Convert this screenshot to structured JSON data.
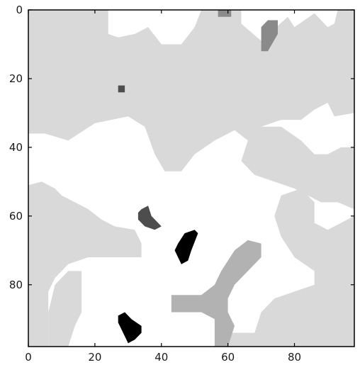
{
  "chart_data": {
    "type": "heatmap",
    "title": "",
    "xlabel": "",
    "ylabel": "",
    "xlim": [
      0,
      98
    ],
    "ylim": [
      98,
      0
    ],
    "x_ticks": [
      "0",
      "20",
      "40",
      "60",
      "80"
    ],
    "y_ticks": [
      "0",
      "20",
      "40",
      "60",
      "80"
    ],
    "grid": false,
    "colormap": "gray_r",
    "levels": {
      "background": "#ffffff",
      "light": "#d9d9d9",
      "medium": "#b2b2b2",
      "dark": "#8a8a8a",
      "darker": "#4d4d4d",
      "black": "#000000"
    },
    "regions": [
      {
        "level": "light",
        "polygon": [
          [
            0,
            0
          ],
          [
            24,
            0
          ],
          [
            24,
            7
          ],
          [
            27,
            8
          ],
          [
            32,
            7
          ],
          [
            36,
            5
          ],
          [
            40,
            10
          ],
          [
            46,
            10
          ],
          [
            50,
            5
          ],
          [
            52,
            0
          ],
          [
            64,
            0
          ],
          [
            64,
            4
          ],
          [
            70,
            9
          ],
          [
            78,
            2
          ],
          [
            80,
            5
          ],
          [
            86,
            1
          ],
          [
            90,
            5
          ],
          [
            92,
            4
          ],
          [
            93,
            0
          ],
          [
            98,
            0
          ],
          [
            98,
            30
          ],
          [
            92,
            31
          ],
          [
            90,
            27
          ],
          [
            86,
            29
          ],
          [
            82,
            32
          ],
          [
            76,
            32
          ],
          [
            70,
            34
          ],
          [
            66,
            38
          ],
          [
            62,
            35
          ],
          [
            56,
            38
          ],
          [
            50,
            42
          ],
          [
            46,
            47
          ],
          [
            41,
            47
          ],
          [
            38,
            42
          ],
          [
            35,
            34
          ],
          [
            30,
            31
          ],
          [
            20,
            33
          ],
          [
            12,
            38
          ],
          [
            5,
            36
          ],
          [
            0,
            36
          ]
        ]
      },
      {
        "level": "light",
        "polygon": [
          [
            0,
            0
          ],
          [
            3,
            0
          ],
          [
            3,
            6
          ],
          [
            0,
            6
          ]
        ]
      },
      {
        "level": "light",
        "polygon": [
          [
            44,
            35
          ],
          [
            52,
            34
          ],
          [
            54,
            36
          ],
          [
            50,
            40
          ],
          [
            45,
            40
          ]
        ]
      },
      {
        "level": "light",
        "polygon": [
          [
            70,
            34
          ],
          [
            76,
            34
          ],
          [
            82,
            38
          ],
          [
            86,
            42
          ],
          [
            90,
            42
          ],
          [
            94,
            40
          ],
          [
            98,
            40
          ],
          [
            98,
            58
          ],
          [
            93,
            56
          ],
          [
            88,
            56
          ],
          [
            80,
            52
          ],
          [
            74,
            50
          ],
          [
            68,
            48
          ],
          [
            64,
            44
          ],
          [
            66,
            38
          ]
        ]
      },
      {
        "level": "light",
        "polygon": [
          [
            0,
            51
          ],
          [
            4,
            50
          ],
          [
            8,
            52
          ],
          [
            10,
            54
          ],
          [
            14,
            56
          ],
          [
            18,
            58
          ],
          [
            22,
            61
          ],
          [
            26,
            63
          ],
          [
            32,
            64
          ],
          [
            34,
            68
          ],
          [
            34,
            72
          ],
          [
            30,
            72
          ],
          [
            24,
            72
          ],
          [
            18,
            72
          ],
          [
            12,
            74
          ],
          [
            8,
            78
          ],
          [
            6,
            82
          ],
          [
            6,
            98
          ],
          [
            0,
            98
          ]
        ]
      },
      {
        "level": "light",
        "polygon": [
          [
            8,
            80
          ],
          [
            12,
            76
          ],
          [
            16,
            76
          ],
          [
            16,
            88
          ],
          [
            14,
            92
          ],
          [
            12,
            98
          ],
          [
            6,
            98
          ],
          [
            6,
            88
          ]
        ]
      },
      {
        "level": "light",
        "polygon": [
          [
            76,
            54
          ],
          [
            82,
            52
          ],
          [
            86,
            56
          ],
          [
            86,
            62
          ],
          [
            90,
            64
          ],
          [
            94,
            62
          ],
          [
            98,
            60
          ],
          [
            98,
            98
          ],
          [
            60,
            98
          ],
          [
            60,
            94
          ],
          [
            68,
            94
          ],
          [
            70,
            88
          ],
          [
            74,
            84
          ],
          [
            80,
            82
          ],
          [
            86,
            80
          ],
          [
            86,
            76
          ],
          [
            80,
            72
          ],
          [
            76,
            66
          ],
          [
            74,
            60
          ]
        ]
      },
      {
        "level": "medium",
        "polygon": [
          [
            43,
            83
          ],
          [
            52,
            83
          ],
          [
            56,
            80
          ],
          [
            58,
            76
          ],
          [
            62,
            70
          ],
          [
            66,
            67
          ],
          [
            70,
            68
          ],
          [
            70,
            72
          ],
          [
            66,
            76
          ],
          [
            62,
            80
          ],
          [
            60,
            84
          ],
          [
            60,
            88
          ],
          [
            62,
            92
          ],
          [
            60,
            98
          ],
          [
            56,
            98
          ],
          [
            56,
            90
          ],
          [
            52,
            88
          ],
          [
            46,
            88
          ],
          [
            43,
            88
          ]
        ]
      },
      {
        "level": "dark",
        "polygon": [
          [
            70,
            5
          ],
          [
            72,
            3
          ],
          [
            75,
            3
          ],
          [
            75,
            7
          ],
          [
            72,
            12
          ],
          [
            70,
            12
          ]
        ]
      },
      {
        "level": "dark",
        "polygon": [
          [
            57,
            0
          ],
          [
            61,
            0
          ],
          [
            61,
            2
          ],
          [
            57,
            2
          ]
        ]
      },
      {
        "level": "darker",
        "polygon": [
          [
            27,
            22
          ],
          [
            29,
            22
          ],
          [
            29,
            24
          ],
          [
            27,
            24
          ]
        ]
      },
      {
        "level": "darker",
        "polygon": [
          [
            34,
            58
          ],
          [
            36,
            57
          ],
          [
            37,
            60
          ],
          [
            39,
            62
          ],
          [
            40,
            63
          ],
          [
            38,
            64
          ],
          [
            35,
            63
          ],
          [
            33,
            61
          ],
          [
            33,
            59
          ]
        ]
      },
      {
        "level": "black",
        "polygon": [
          [
            45,
            68
          ],
          [
            47,
            65
          ],
          [
            50,
            64
          ],
          [
            51,
            65
          ],
          [
            49,
            70
          ],
          [
            48,
            73
          ],
          [
            46,
            74
          ],
          [
            45,
            72
          ],
          [
            44,
            70
          ]
        ]
      },
      {
        "level": "black",
        "polygon": [
          [
            27,
            89
          ],
          [
            29,
            88
          ],
          [
            31,
            90
          ],
          [
            34,
            92
          ],
          [
            34,
            94
          ],
          [
            32,
            96
          ],
          [
            30,
            97
          ],
          [
            29,
            95
          ],
          [
            28,
            93
          ],
          [
            27,
            91
          ]
        ]
      }
    ]
  }
}
